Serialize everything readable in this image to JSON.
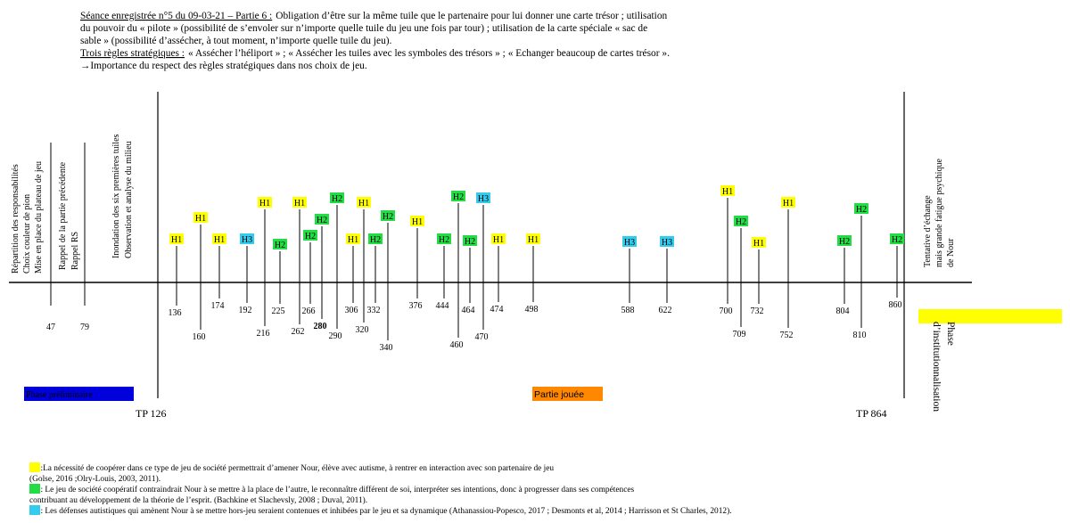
{
  "header": {
    "session_heading": "Séance enregistrée n°5 du 09-03-21 – Partie 6 :",
    "session_lines": [
      "Obligation d’être sur la même tuile que le partenaire pour lui donner une carte trésor ; utilisation",
      "du pouvoir du « pilote » (possibilité de s’envoler sur n’importe quelle tuile du jeu une fois par tour) ; utilisation de la carte spéciale « sac de",
      "sable » (possibilité d’assécher, à tout moment, n’importe quelle tuile du jeu)."
    ],
    "rules_heading": "Trois règles stratégiques :",
    "rules_text": "« Assécher l’héliport » ; « Assécher les tuiles avec les symboles des trésors » ; « Echanger beaucoup de cartes trésor ».",
    "conclusion": "→Importance du respect des règles stratégiques dans nos choix de jeu."
  },
  "preliminary": [
    {
      "labels": [
        "Répartition des responsabilités",
        "Choix couleur de pion",
        "Mise en place du plateau de jeu"
      ],
      "time": 47
    },
    {
      "labels": [
        "Rappel de la partie précédente",
        "Rappel RS"
      ],
      "time": 79
    },
    {
      "labels": [
        "Inondation des six premières tuiles",
        "Observation et analyse du milieu"
      ]
    }
  ],
  "turning_points": [
    "TP 126",
    "TP 864"
  ],
  "closing": [
    "Tentative d’échange",
    "mais grande fatigue psychique",
    "de Nour"
  ],
  "phases": {
    "preliminary": "Phase préliminaire",
    "game": "Partie jouée",
    "institutionalisation": [
      "Phase",
      "d’institutionnalisation"
    ]
  },
  "tag_colors": {
    "H1": "#ffff00",
    "H2": "#22dd44",
    "H3": "#33ccee"
  },
  "events": [
    {
      "tag": "H1",
      "time": 136
    },
    {
      "tag": "H1",
      "time": 160
    },
    {
      "tag": "H1",
      "time": 174
    },
    {
      "tag": "H3",
      "time": 192
    },
    {
      "tag": "H1",
      "time": 216
    },
    {
      "tag": "H2",
      "time": 225
    },
    {
      "tag": "H1",
      "time": 262
    },
    {
      "tag": "H2",
      "time": 266
    },
    {
      "tag": "H2",
      "time": 280,
      "bold": true
    },
    {
      "tag": "H2",
      "time": 290
    },
    {
      "tag": "H1",
      "time": 306
    },
    {
      "tag": "H1",
      "time": 320
    },
    {
      "tag": "H2",
      "time": 332
    },
    {
      "tag": "H2",
      "time": 340
    },
    {
      "tag": "H1",
      "time": 376
    },
    {
      "tag": "H2",
      "time": 444
    },
    {
      "tag": "H2",
      "time": 460
    },
    {
      "tag": "H2",
      "time": 464
    },
    {
      "tag": "H3",
      "time": 470
    },
    {
      "tag": "H1",
      "time": 474
    },
    {
      "tag": "H1",
      "time": 498
    },
    {
      "tag": "H3",
      "time": 588
    },
    {
      "tag": "H3",
      "time": 622
    },
    {
      "tag": "H1",
      "time": 700
    },
    {
      "tag": "H2",
      "time": 709
    },
    {
      "tag": "H1",
      "time": 732
    },
    {
      "tag": "H1",
      "time": 752
    },
    {
      "tag": "H2",
      "time": 804
    },
    {
      "tag": "H2",
      "time": 810
    },
    {
      "tag": "H2",
      "time": 860
    }
  ],
  "legend": [
    {
      "code": "H1",
      "lines": [
        ":La nécessité de coopérer dans ce type de jeu de société permettrait d’amener Nour, élève avec autisme, à rentrer en interaction avec son partenaire de jeu",
        "(Golse, 2016 ;Olry-Louis, 2003, 2011)."
      ]
    },
    {
      "code": "H2",
      "lines": [
        ": Le jeu de société coopératif contraindrait Nour à se mettre à la place de l’autre, le reconnaître différent de soi, interpréter ses intentions, donc à progresser dans ses compétences",
        "contribuant au développement de la théorie de l’esprit. (Bachkine et Slachevsly, 2008 ; Duval, 2011)."
      ]
    },
    {
      "code": "H3",
      "lines": [
        ": Les défenses autistiques qui amènent Nour à se mettre hors-jeu seraient contenues et inhibées par le jeu et sa dynamique (Athanassiou-Popesco, 2017 ; Desmonts et al, 2014 ; Harrisson et St Charles, 2012)."
      ]
    }
  ]
}
